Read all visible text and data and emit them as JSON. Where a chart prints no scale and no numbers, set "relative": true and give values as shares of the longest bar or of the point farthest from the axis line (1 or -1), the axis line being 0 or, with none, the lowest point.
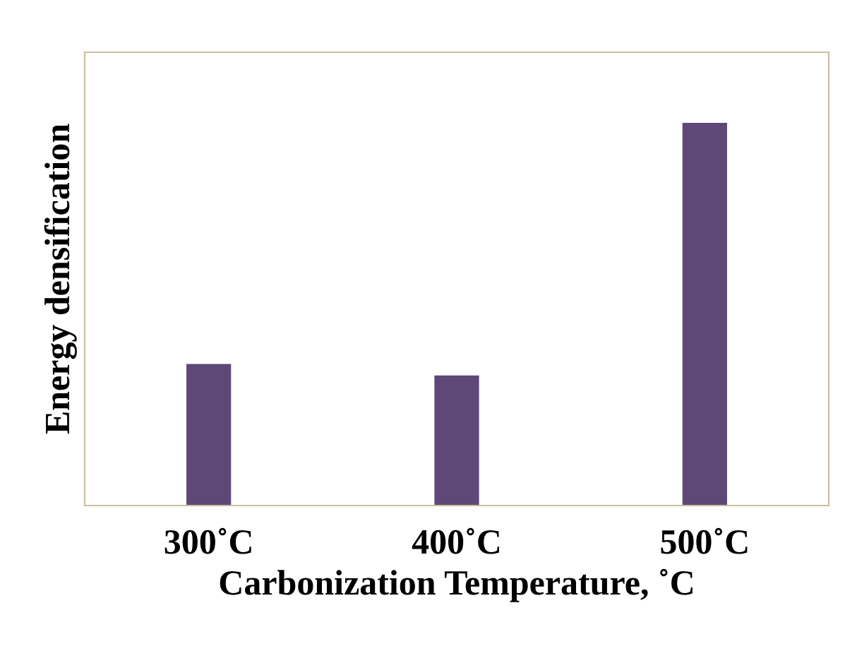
{
  "chart_data": {
    "type": "bar",
    "xlabel": "Carbonization Temperature, ˚C",
    "ylabel": "Energy densification",
    "categories": [
      "300˚C",
      "400˚C",
      "500˚C"
    ],
    "values": [
      0.37,
      0.34,
      1.0
    ],
    "color": "#5d4878",
    "relative": true,
    "grid": false,
    "legend": false
  }
}
